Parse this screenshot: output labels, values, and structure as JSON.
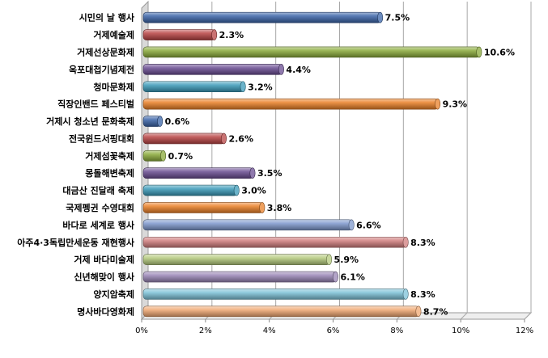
{
  "chart_data": {
    "type": "bar",
    "orientation": "horizontal",
    "style": "3d-cylinder",
    "categories": [
      "시민의 날 행사",
      "거제예술제",
      "거제선상문화제",
      "옥포대첩기념제전",
      "청마문화제",
      "직장인밴드 페스티벌",
      "거제시 청소년 문화축제",
      "전국윈드서핑대회",
      "거제섬꽃축제",
      "몽돌해변축제",
      "대금산 진달래 축제",
      "국제펭귄 수영대회",
      "바다로 세계로 행사",
      "아주4·3독립만세운동 재현행사",
      "거제 바다미술제",
      "신년해맞이 행사",
      "양지암축제",
      "명사바다영화제"
    ],
    "values": [
      7.5,
      2.3,
      10.6,
      4.4,
      3.2,
      9.3,
      0.6,
      2.6,
      0.7,
      3.5,
      3.0,
      3.8,
      6.6,
      8.3,
      5.9,
      6.1,
      8.3,
      8.7
    ],
    "data_labels": [
      "7.5%",
      "2.3%",
      "10.6%",
      "4.4%",
      "3.2%",
      "9.3%",
      "0.6%",
      "2.6%",
      "0.7%",
      "3.5%",
      "3.0%",
      "3.8%",
      "6.6%",
      "8.3%",
      "5.9%",
      "6.1%",
      "8.3%",
      "8.7%"
    ],
    "colors": [
      "#3a64a8",
      "#b84444",
      "#8aaa3a",
      "#6a4c92",
      "#3a9ab8",
      "#ea8028",
      "#3a64a8",
      "#b84444",
      "#8aaa3a",
      "#6a4c92",
      "#3a9ab8",
      "#ea8028",
      "#7e98cc",
      "#d07c7c",
      "#b4ca7c",
      "#9a86b6",
      "#7cc2d8",
      "#f0a872"
    ],
    "x_ticks": [
      "0%",
      "2%",
      "4%",
      "6%",
      "8%",
      "10%",
      "12%"
    ],
    "xlim": [
      0,
      12
    ],
    "grid": true,
    "legend": "none",
    "title": "",
    "xlabel": "",
    "ylabel": ""
  }
}
